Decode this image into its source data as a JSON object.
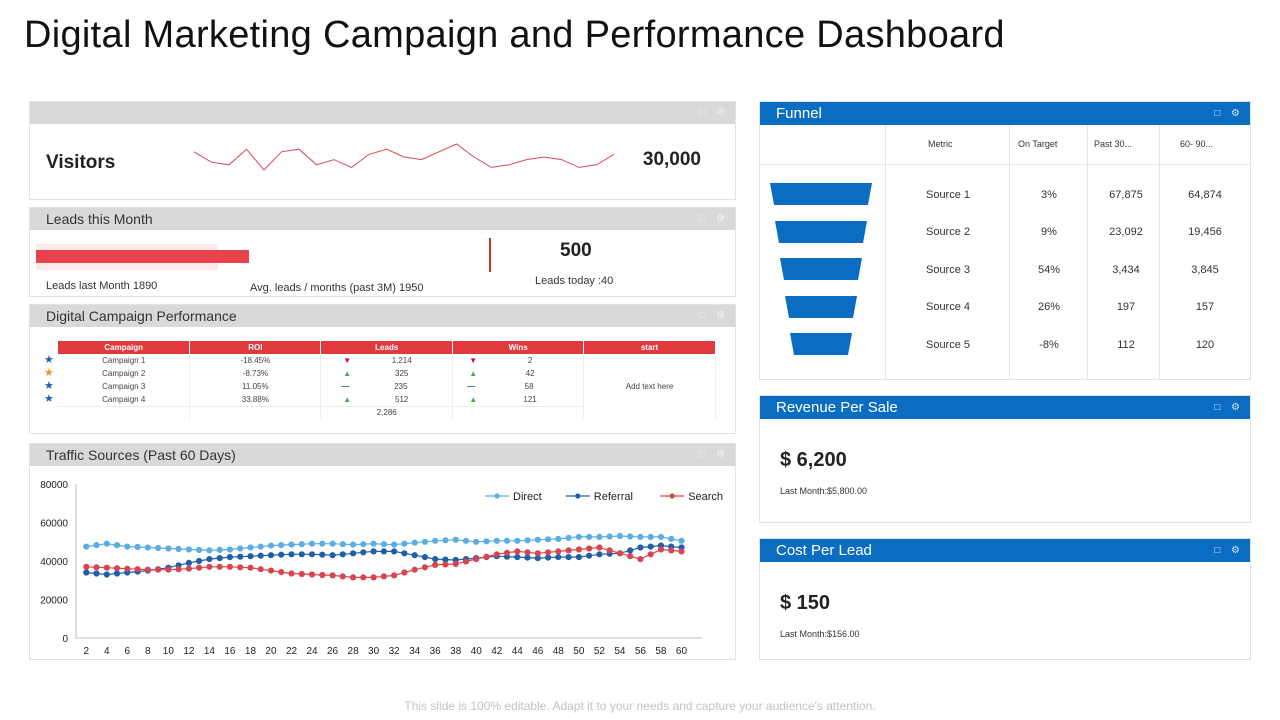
{
  "page": {
    "title": "Digital Marketing Campaign and Performance Dashboard",
    "footer": "This slide is 100% editable. Adapt it to your needs and capture your audience's attention."
  },
  "header_icons": "□ ⚙",
  "visitors": {
    "label": "Visitors",
    "value": "30,000",
    "sparkline": [
      62,
      58,
      57,
      63,
      55,
      62,
      63,
      57,
      59,
      56,
      61,
      63,
      60,
      59,
      62,
      65,
      60,
      56,
      57,
      59,
      60,
      59,
      56,
      57,
      61
    ]
  },
  "leads": {
    "title": "Leads this Month",
    "last_month": "Leads last Month  1890",
    "avg": "Avg. leads / months (past 3M) 1950",
    "today_value": "500",
    "today": "Leads today :40",
    "bar_fraction": 0.74
  },
  "campaign": {
    "title": "Digital  Campaign  Performance",
    "headers": [
      "Campaign",
      "ROI",
      "Leads",
      "Wins",
      "start"
    ],
    "rows": [
      {
        "star": "★",
        "star_color": "#1f5fa8",
        "name": "Campaign  1",
        "roi": "-18.45%",
        "leads_trend": "▼",
        "leads": "1,214",
        "wins_trend": "▼",
        "wins": "2"
      },
      {
        "star": "★",
        "star_color": "#f0902d",
        "name": "Campaign  2",
        "roi": "-8.73%",
        "leads_trend": "▲",
        "leads": "325",
        "wins_trend": "▲",
        "wins": "42"
      },
      {
        "star": "★",
        "star_color": "#1f5fa8",
        "name": "Campaign  3",
        "roi": "11.05%",
        "leads_trend": "—",
        "leads": "235",
        "wins_trend": "—",
        "wins": "58"
      },
      {
        "star": "★",
        "star_color": "#1f5fa8",
        "name": "Campaign  4",
        "roi": "33.88%",
        "leads_trend": "▲",
        "leads": "512",
        "wins_trend": "▲",
        "wins": "121"
      }
    ],
    "total_leads": "2,286",
    "start_note": "Add text here"
  },
  "traffic": {
    "title": "Traffic  Sources  (Past 60 Days)"
  },
  "funnel": {
    "title": "Funnel",
    "headers": [
      "Metric",
      "On Target",
      "Past 30...",
      "60- 90..."
    ],
    "rows": [
      {
        "metric": "Source 1",
        "target": "3%",
        "past30": "67,875",
        "past60": "64,874"
      },
      {
        "metric": "Source 2",
        "target": "9%",
        "past30": "23,092",
        "past60": "19,456"
      },
      {
        "metric": "Source 3",
        "target": "54%",
        "past30": "3,434",
        "past60": "3,845"
      },
      {
        "metric": "Source 4",
        "target": "26%",
        "past30": "197",
        "past60": "157"
      },
      {
        "metric": "Source 5",
        "target": "-8%",
        "past30": "112",
        "past60": "120"
      }
    ],
    "color": "#0b6dc1"
  },
  "revenue": {
    "title": "Revenue  Per Sale",
    "value": "$ 6,200",
    "sub": "Last Month:$5,800.00"
  },
  "cpl": {
    "title": "Cost Per Lead",
    "value": "$ 150",
    "sub": "Last Month:$156.00"
  },
  "chart_data": {
    "type": "line",
    "title": "Traffic  Sources  (Past 60 Days)",
    "x": [
      2,
      4,
      6,
      8,
      10,
      12,
      14,
      16,
      18,
      20,
      22,
      24,
      26,
      28,
      30,
      32,
      34,
      36,
      38,
      40,
      42,
      44,
      46,
      48,
      50,
      52,
      54,
      56,
      58,
      60
    ],
    "xlim": [
      1,
      62
    ],
    "ylim": [
      0,
      80000
    ],
    "yticks": [
      0,
      20000,
      40000,
      60000,
      80000
    ],
    "xticks": [
      2,
      4,
      6,
      8,
      10,
      12,
      14,
      16,
      18,
      20,
      22,
      24,
      26,
      28,
      30,
      32,
      34,
      36,
      38,
      40,
      42,
      44,
      46,
      48,
      50,
      52,
      54,
      56,
      58,
      60
    ],
    "legend": "top-right",
    "series": [
      {
        "name": "Direct",
        "color": "#5aaee4",
        "values": [
          47500,
          49000,
          47500,
          47000,
          46500,
          46000,
          45500,
          46000,
          47000,
          48000,
          48500,
          49000,
          49000,
          48500,
          49000,
          48500,
          49500,
          50500,
          51000,
          50000,
          50500,
          50500,
          51000,
          51500,
          52500,
          52500,
          53000,
          52500,
          52500,
          50500
        ]
      },
      {
        "name": "Referral",
        "color": "#1f5fa8",
        "values": [
          34000,
          33000,
          34000,
          35000,
          36500,
          39000,
          41000,
          42000,
          42500,
          43000,
          43500,
          43500,
          43000,
          44000,
          45000,
          45000,
          43000,
          41000,
          40500,
          41500,
          42500,
          42000,
          41500,
          42000,
          42000,
          43500,
          44000,
          47000,
          48000,
          47000
        ]
      },
      {
        "name": "Search",
        "color": "#d9454f",
        "values": [
          37000,
          36500,
          36000,
          35500,
          35500,
          36000,
          37000,
          37000,
          36500,
          35000,
          33500,
          33000,
          32500,
          31500,
          31500,
          32500,
          35500,
          38000,
          38500,
          41000,
          43500,
          45000,
          44000,
          45000,
          46000,
          47000,
          44000,
          41000,
          46000,
          45000
        ]
      }
    ]
  }
}
